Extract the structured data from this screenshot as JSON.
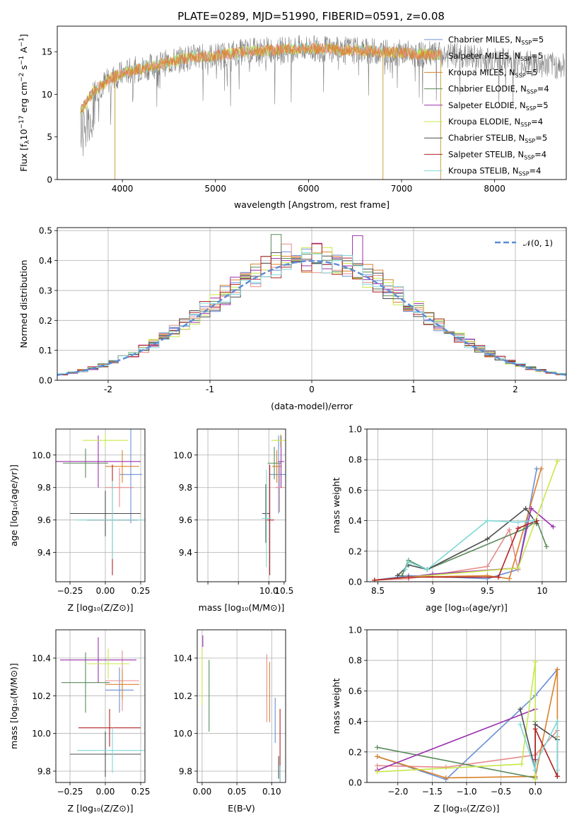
{
  "title": "PLATE=0289, MJD=51990, FIBERID=0591, z=0.08",
  "colors": [
    "#6a8fd6",
    "#e88b8b",
    "#d9822b",
    "#5a8a5a",
    "#9b2fae",
    "#c6e84a",
    "#4d4d4d",
    "#b22222",
    "#7fd8d8"
  ],
  "models": [
    "Chabrier MILES, N_SSP=5",
    "Salpeter MILES, N_SSP=5",
    "Kroupa MILES, N_SSP=5",
    "Chabrier ELODIE, N_SSP=4",
    "Salpeter ELODIE, N_SSP=5",
    "Kroupa ELODIE, N_SSP=4",
    "Chabrier STELIB, N_SSP=5",
    "Salpeter STELIB, N_SSP=4",
    "Kroupa STELIB, N_SSP=4"
  ],
  "chart_data": [
    {
      "id": "spectrum",
      "type": "line",
      "xlabel": "wavelength [Angstrom, rest frame]",
      "ylabel": "Flux [f_λ10^-17 erg cm^-2 s^-1 A^-1]",
      "xlim": [
        3300,
        8770
      ],
      "ylim": [
        0,
        18
      ],
      "xticks": [
        4000,
        5000,
        6000,
        7000,
        8000
      ],
      "yticks": [
        0,
        5,
        10,
        15
      ],
      "legend": "upper right",
      "continuum": [
        [
          3550,
          8.0
        ],
        [
          3700,
          10.5
        ],
        [
          3900,
          12.0
        ],
        [
          4100,
          12.8
        ],
        [
          4400,
          13.5
        ],
        [
          4700,
          14.3
        ],
        [
          5000,
          14.5
        ],
        [
          5300,
          15.0
        ],
        [
          5600,
          15.2
        ],
        [
          6000,
          15.4
        ],
        [
          6400,
          15.2
        ],
        [
          6800,
          15.0
        ],
        [
          7200,
          14.7
        ],
        [
          7600,
          14.5
        ],
        [
          8000,
          14.0
        ],
        [
          8400,
          13.6
        ],
        [
          8700,
          13.3
        ]
      ],
      "data_x_range": [
        3550,
        8750
      ],
      "model_x_range": [
        3550,
        7420
      ]
    },
    {
      "id": "residuals",
      "type": "step",
      "xlabel": "(data-model)/error",
      "ylabel": "Normed distribution",
      "xlim": [
        -2.5,
        2.5
      ],
      "ylim": [
        0,
        0.51
      ],
      "xticks": [
        -2,
        -1,
        0,
        1,
        2
      ],
      "yticks": [
        0.0,
        0.1,
        0.2,
        0.3,
        0.4,
        0.5
      ],
      "legend": "𝒩(0, 1)",
      "bin_width": 0.1,
      "spike_highs": {
        "-0.35": 0.487,
        "0.45": 0.483,
        "-0.25": 0.455
      }
    },
    {
      "id": "age_vs_Z",
      "type": "errorbar",
      "xlabel": "Z [log10(Z/Z⊙)]",
      "ylabel": "age  [log10(age/yr)]",
      "xlim": [
        -0.35,
        0.28
      ],
      "ylim": [
        9.22,
        10.16
      ],
      "xticks": [
        -0.25,
        0.0,
        0.25
      ],
      "xticklabels": [
        "−0.25",
        "0.00",
        "0.25"
      ],
      "yticks": [
        9.4,
        9.6,
        9.8,
        10.0
      ],
      "points": [
        {
          "x": 0.18,
          "xe": 0.08,
          "y": 9.88,
          "ye": 0.3,
          "c": 0
        },
        {
          "x": 0.1,
          "xe": 0.1,
          "y": 9.8,
          "ye": 0.12,
          "c": 1
        },
        {
          "x": 0.12,
          "xe": 0.12,
          "y": 9.93,
          "ye": 0.1,
          "c": 2
        },
        {
          "x": -0.14,
          "xe": 0.16,
          "y": 9.95,
          "ye": 0.09,
          "c": 3
        },
        {
          "x": -0.05,
          "xe": 0.3,
          "y": 9.96,
          "ye": 0.16,
          "c": 4
        },
        {
          "x": 0.0,
          "xe": 0.16,
          "y": 10.09,
          "ye": 0.04,
          "c": 5
        },
        {
          "x": 0.0,
          "xe": 0.25,
          "y": 9.64,
          "ye": 0.14,
          "c": 6
        },
        {
          "x": 0.05,
          "xe": 0.18,
          "y": 9.6,
          "ye": 0.34,
          "c": 7
        },
        {
          "x": 0.05,
          "xe": 0.25,
          "y": 9.6,
          "ye": 0.24,
          "c": 8
        }
      ]
    },
    {
      "id": "age_vs_mass",
      "type": "errorbar",
      "xlabel": "mass [log10(M/M⊙)]",
      "ylabel": "",
      "xlim": [
        7.65,
        10.55
      ],
      "ylim": [
        9.22,
        10.16
      ],
      "xticks": [
        8.0,
        9.0,
        10.0
      ],
      "xticklabels": [
        "",
        "",
        ""
      ],
      "extra_xticks": [
        10.0,
        10.5
      ],
      "extra_xticklabels": [
        "10.0",
        "10.5"
      ],
      "yticks": [
        9.4,
        9.6,
        9.8,
        10.0
      ],
      "points": [
        {
          "x": 10.32,
          "xe": 0.28,
          "y": 9.88,
          "ye": 0.24,
          "c": 0
        },
        {
          "x": 10.35,
          "xe": 0.15,
          "y": 9.8,
          "ye": 0.15,
          "c": 1
        },
        {
          "x": 10.26,
          "xe": 0.16,
          "y": 9.93,
          "ye": 0.1,
          "c": 2
        },
        {
          "x": 10.18,
          "xe": 0.22,
          "y": 9.95,
          "ye": 0.1,
          "c": 3
        },
        {
          "x": 10.4,
          "xe": 0.1,
          "y": 9.96,
          "ye": 0.16,
          "c": 4
        },
        {
          "x": 10.38,
          "xe": 0.3,
          "y": 10.09,
          "ye": 0.04,
          "c": 5
        },
        {
          "x": 9.9,
          "xe": 0.12,
          "y": 9.64,
          "ye": 0.18,
          "c": 6
        },
        {
          "x": 10.03,
          "xe": 0.14,
          "y": 9.6,
          "ye": 0.34,
          "c": 7
        },
        {
          "x": 9.92,
          "xe": 0.15,
          "y": 9.61,
          "ye": 0.3,
          "c": 8
        }
      ]
    },
    {
      "id": "massweight_vs_age",
      "type": "line",
      "xlabel": "age  [log10(age/yr)]",
      "ylabel": "mass weight",
      "xlim": [
        8.4,
        10.22
      ],
      "ylim": [
        0,
        1
      ],
      "xticks": [
        8.5,
        9.0,
        9.5,
        10.0
      ],
      "yticks": [
        0.0,
        0.2,
        0.4,
        0.6,
        0.8,
        1.0
      ],
      "series": [
        {
          "c": 0,
          "x": [
            8.47,
            8.78,
            9.5,
            9.78,
            9.95
          ],
          "y": [
            0.01,
            0.04,
            0.02,
            0.08,
            0.74
          ]
        },
        {
          "c": 1,
          "x": [
            8.47,
            8.78,
            9.5,
            9.7,
            9.78
          ],
          "y": [
            0.01,
            0.02,
            0.1,
            0.34,
            0.08
          ]
        },
        {
          "c": 2,
          "x": [
            8.47,
            8.78,
            9.5,
            9.7,
            9.99
          ],
          "y": [
            0.01,
            0.03,
            0.04,
            0.02,
            0.74
          ]
        },
        {
          "c": 3,
          "x": [
            8.72,
            8.78,
            8.95,
            9.85,
            9.95,
            10.04
          ],
          "y": [
            0.04,
            0.14,
            0.08,
            0.35,
            0.4,
            0.23
          ]
        },
        {
          "c": 4,
          "x": [
            8.47,
            8.78,
            9.0,
            9.78,
            9.9,
            10.1
          ],
          "y": [
            0.01,
            0.03,
            0.05,
            0.09,
            0.48,
            0.36
          ]
        },
        {
          "c": 5,
          "x": [
            8.47,
            8.78,
            9.78,
            10.14
          ],
          "y": [
            0.01,
            0.03,
            0.09,
            0.79
          ]
        },
        {
          "c": 6,
          "x": [
            8.68,
            8.78,
            8.95,
            9.5,
            9.85,
            9.95
          ],
          "y": [
            0.04,
            0.11,
            0.08,
            0.28,
            0.48,
            0.38
          ]
        },
        {
          "c": 7,
          "x": [
            8.47,
            8.78,
            9.6,
            9.78,
            9.95
          ],
          "y": [
            0.01,
            0.03,
            0.03,
            0.35,
            0.4
          ]
        },
        {
          "c": 8,
          "x": [
            8.75,
            8.78,
            8.95,
            9.5,
            9.78,
            9.92
          ],
          "y": [
            0.08,
            0.13,
            0.08,
            0.4,
            0.39,
            0.4
          ]
        }
      ]
    },
    {
      "id": "mass_vs_Z",
      "type": "errorbar",
      "xlabel": "Z [log10(Z/Z⊙)]",
      "ylabel": "mass [log10(M/M⊙)]",
      "xlim": [
        -0.35,
        0.28
      ],
      "ylim": [
        9.74,
        10.55
      ],
      "xticks": [
        -0.25,
        0.0,
        0.25
      ],
      "xticklabels": [
        "−0.25",
        "0.00",
        "0.25"
      ],
      "yticks": [
        9.8,
        10.0,
        10.2,
        10.4
      ],
      "points": [
        {
          "x": 0.1,
          "xe": 0.1,
          "y": 10.23,
          "ye": 0.12,
          "c": 0
        },
        {
          "x": 0.12,
          "xe": 0.12,
          "y": 10.28,
          "ye": 0.16,
          "c": 1
        },
        {
          "x": 0.12,
          "xe": 0.12,
          "y": 10.26,
          "ye": 0.08,
          "c": 2
        },
        {
          "x": -0.14,
          "xe": 0.17,
          "y": 10.27,
          "ye": 0.16,
          "c": 3
        },
        {
          "x": -0.05,
          "xe": 0.27,
          "y": 10.39,
          "ye": 0.12,
          "c": 4
        },
        {
          "x": 0.02,
          "xe": 0.15,
          "y": 10.37,
          "ye": 0.08,
          "c": 5
        },
        {
          "x": 0.0,
          "xe": 0.25,
          "y": 9.89,
          "ye": 0.12,
          "c": 6
        },
        {
          "x": 0.03,
          "xe": 0.22,
          "y": 10.03,
          "ye": 0.1,
          "c": 7
        },
        {
          "x": 0.05,
          "xe": 0.25,
          "y": 9.91,
          "ye": 0.12,
          "c": 8
        }
      ]
    },
    {
      "id": "mass_vs_ebv",
      "type": "errorbar",
      "xlabel": "E(B-V)",
      "ylabel": "",
      "xlim": [
        -0.007,
        0.12
      ],
      "ylim": [
        9.74,
        10.55
      ],
      "xticks": [
        0.0,
        0.05,
        0.1
      ],
      "xticklabels": [
        "0.00",
        "0.05",
        "0.10"
      ],
      "yticks": [
        9.8,
        10.0,
        10.2,
        10.4
      ],
      "points": [
        {
          "x": 0.105,
          "xe": 0,
          "y": 10.07,
          "ye": 0.12,
          "c": 0
        },
        {
          "x": 0.093,
          "xe": 0,
          "y": 10.24,
          "ye": 0.18,
          "c": 1
        },
        {
          "x": 0.097,
          "xe": 0,
          "y": 10.22,
          "ye": 0.16,
          "c": 2
        },
        {
          "x": 0.01,
          "xe": 0,
          "y": 10.2,
          "ye": 0.19,
          "c": 3
        },
        {
          "x": 0.001,
          "xe": 0,
          "y": 10.49,
          "ye": 0.03,
          "c": 4
        },
        {
          "x": 0.0,
          "xe": 0,
          "y": 10.3,
          "ye": 0.15,
          "c": 5
        },
        {
          "x": 0.11,
          "xe": 0,
          "y": 9.82,
          "ye": 0.06,
          "c": 6
        },
        {
          "x": 0.112,
          "xe": 0,
          "y": 9.93,
          "ye": 0.2,
          "c": 7
        },
        {
          "x": 0.112,
          "xe": 0,
          "y": 9.78,
          "ye": 0.05,
          "c": 8
        }
      ]
    },
    {
      "id": "massweight_vs_Z",
      "type": "line",
      "xlabel": "Z [log10(Z/Z⊙)]",
      "ylabel": "mass weight",
      "xlim": [
        -2.45,
        0.45
      ],
      "ylim": [
        0,
        1
      ],
      "xticks": [
        -2.0,
        -1.5,
        -1.0,
        -0.5,
        0.0
      ],
      "xticklabels": [
        "−2.0",
        "−1.5",
        "−1.0",
        "−0.5",
        "0.0"
      ],
      "yticks": [
        0.0,
        0.2,
        0.4,
        0.6,
        0.8,
        1.0
      ],
      "series": [
        {
          "c": 0,
          "x": [
            -2.3,
            -1.3,
            0.0,
            0.32
          ],
          "y": [
            0.17,
            0.02,
            0.57,
            0.74
          ]
        },
        {
          "c": 1,
          "x": [
            -2.3,
            -1.3,
            0.0,
            0.32
          ],
          "y": [
            0.11,
            0.1,
            0.18,
            0.34
          ]
        },
        {
          "c": 2,
          "x": [
            -2.3,
            -1.3,
            0.0,
            0.32,
            0.32
          ],
          "y": [
            0.17,
            0.03,
            0.04,
            0.74,
            0.3
          ]
        },
        {
          "c": 3,
          "x": [
            -2.3,
            0.0,
            0.0
          ],
          "y": [
            0.23,
            0.03,
            0.4
          ]
        },
        {
          "c": 4,
          "x": [
            -2.3,
            0.0,
            0.0
          ],
          "y": [
            0.08,
            0.48,
            0.15
          ]
        },
        {
          "c": 5,
          "x": [
            -2.3,
            -0.2,
            0.0,
            0.0
          ],
          "y": [
            0.07,
            0.12,
            0.79,
            0.02
          ]
        },
        {
          "c": 6,
          "x": [
            -0.22,
            0.0,
            0.0,
            0.32,
            0.32
          ],
          "y": [
            0.48,
            0.08,
            0.38,
            0.28,
            0.04
          ]
        },
        {
          "c": 7,
          "x": [
            0.0,
            0.0,
            0.32
          ],
          "y": [
            0.12,
            0.35,
            0.04
          ]
        },
        {
          "c": 8,
          "x": [
            -0.22,
            0.0,
            0.0,
            0.32,
            0.32
          ],
          "y": [
            0.38,
            0.08,
            0.12,
            0.4,
            0.08
          ]
        }
      ]
    }
  ]
}
